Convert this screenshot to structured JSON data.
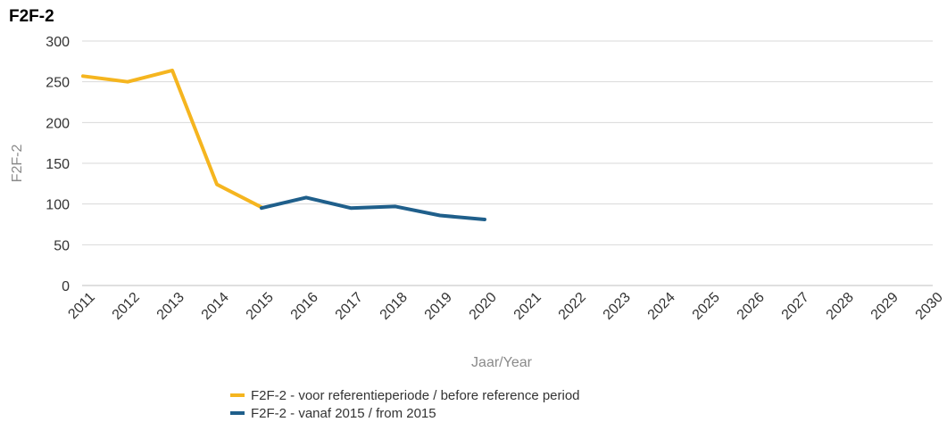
{
  "chart_data": {
    "type": "line",
    "title": "F2F-2",
    "xlabel": "Jaar/Year",
    "ylabel": "F2F-2",
    "x": [
      "2011",
      "2012",
      "2013",
      "2014",
      "2015",
      "2016",
      "2017",
      "2018",
      "2019",
      "2020",
      "2021",
      "2022",
      "2023",
      "2024",
      "2025",
      "2026",
      "2027",
      "2028",
      "2029",
      "2030"
    ],
    "ylim": [
      0,
      300
    ],
    "yticks": [
      0,
      50,
      100,
      150,
      200,
      250,
      300
    ],
    "grid": true,
    "legend_position": "bottom",
    "series": [
      {
        "name": "F2F-2 - voor referentieperiode / before reference period",
        "color": "#f5b51f",
        "points": [
          {
            "x": "2011",
            "y": 257
          },
          {
            "x": "2012",
            "y": 250
          },
          {
            "x": "2013",
            "y": 264
          },
          {
            "x": "2014",
            "y": 124
          },
          {
            "x": "2015",
            "y": 96
          }
        ]
      },
      {
        "name": "F2F-2 - vanaf 2015 / from 2015",
        "color": "#1f5f8b",
        "points": [
          {
            "x": "2015",
            "y": 95
          },
          {
            "x": "2016",
            "y": 108
          },
          {
            "x": "2017",
            "y": 95
          },
          {
            "x": "2018",
            "y": 97
          },
          {
            "x": "2019",
            "y": 86
          },
          {
            "x": "2020",
            "y": 81
          }
        ]
      }
    ]
  }
}
